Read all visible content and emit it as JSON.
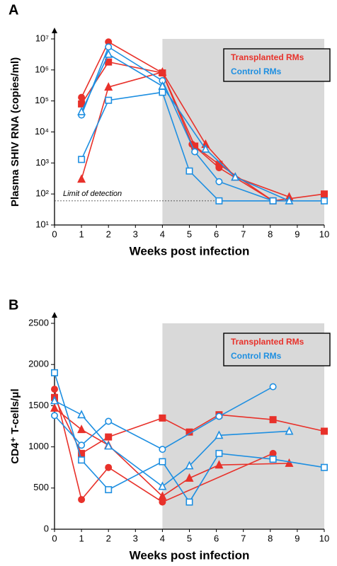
{
  "chart_data": [
    {
      "type": "line",
      "panel": "A",
      "xlabel": "Weeks post infection",
      "ylabel": "Plasma SHIV RNA (copies/ml)",
      "xlim": [
        0,
        10
      ],
      "xticks": [
        0,
        1,
        2,
        3,
        4,
        5,
        6,
        7,
        8,
        9,
        10
      ],
      "ylim": [
        10,
        10000000
      ],
      "log_y": true,
      "yticks": [
        {
          "value": 10,
          "label": "10¹"
        },
        {
          "value": 100,
          "label": "10²"
        },
        {
          "value": 1000,
          "label": "10³"
        },
        {
          "value": 10000,
          "label": "10⁴"
        },
        {
          "value": 100000,
          "label": "10⁵"
        },
        {
          "value": 1000000,
          "label": "10⁶"
        },
        {
          "value": 10000000,
          "label": "10⁷"
        }
      ],
      "shade_x": [
        4,
        10
      ],
      "legend": "top-right",
      "reference_line": {
        "value": 60,
        "label": "Limit of detection"
      },
      "groups": [
        {
          "name": "Transplanted RMs",
          "color": "#e8312a",
          "filled": true,
          "animals": [
            {
              "marker": "circle",
              "x": [
                1,
                2,
                4,
                5.1,
                6.1,
                8.1
              ],
              "values": [
                130000,
                8000000,
                800000,
                4000,
                700,
                60
              ]
            },
            {
              "marker": "square",
              "x": [
                1,
                2,
                4,
                5.2,
                6.1,
                8.1,
                10
              ],
              "values": [
                80000,
                1800000,
                800000,
                3500,
                900,
                60,
                100
              ]
            },
            {
              "marker": "triangle",
              "x": [
                1,
                2,
                4,
                5.6,
                6.7,
                8.7
              ],
              "values": [
                300,
                280000,
                850000,
                4000,
                350,
                80
              ]
            }
          ]
        },
        {
          "name": "Control RMs",
          "color": "#1e8fe1",
          "filled": false,
          "animals": [
            {
              "marker": "circle",
              "x": [
                1,
                2,
                4,
                5.2,
                6.1,
                8.1
              ],
              "values": [
                35000,
                5500000,
                450000,
                2300,
                250,
                60
              ]
            },
            {
              "marker": "square",
              "x": [
                1,
                2,
                4,
                5,
                6.1,
                8.1,
                10
              ],
              "values": [
                1300,
                105000,
                190000,
                550,
                60,
                60,
                60
              ]
            },
            {
              "marker": "triangle",
              "x": [
                1,
                2,
                4,
                5.6,
                6.7,
                8.7
              ],
              "values": [
                45000,
                3200000,
                300000,
                2800,
                350,
                60
              ]
            }
          ]
        }
      ]
    },
    {
      "type": "line",
      "panel": "B",
      "xlabel": "Weeks post infection",
      "ylabel": "CD4⁺ T-cells/μl",
      "xlim": [
        0,
        10
      ],
      "xticks": [
        0,
        1,
        2,
        3,
        4,
        5,
        6,
        7,
        8,
        9,
        10
      ],
      "ylim": [
        0,
        2500
      ],
      "log_y": false,
      "yticks": [
        0,
        500,
        1000,
        1500,
        2000,
        2500
      ],
      "shade_x": [
        4,
        10
      ],
      "legend": "top-right",
      "groups": [
        {
          "name": "Transplanted RMs",
          "color": "#e8312a",
          "filled": true,
          "animals": [
            {
              "marker": "circle",
              "x": [
                0,
                1,
                2,
                4,
                8.1
              ],
              "values": [
                1700,
                360,
                750,
                330,
                920
              ]
            },
            {
              "marker": "square",
              "x": [
                0,
                1,
                2,
                4,
                5,
                6.1,
                8.1,
                10
              ],
              "values": [
                1600,
                920,
                1120,
                1350,
                1180,
                1390,
                1330,
                1190
              ]
            },
            {
              "marker": "triangle",
              "x": [
                0,
                1,
                2,
                4,
                5,
                6.1,
                8.7
              ],
              "values": [
                1470,
                1210,
                1020,
                400,
                620,
                780,
                800
              ]
            }
          ]
        },
        {
          "name": "Control RMs",
          "color": "#1e8fe1",
          "filled": false,
          "animals": [
            {
              "marker": "circle",
              "x": [
                0,
                1,
                2,
                4,
                6.1,
                8.1
              ],
              "values": [
                1380,
                1020,
                1310,
                970,
                1370,
                1730
              ]
            },
            {
              "marker": "square",
              "x": [
                0,
                1,
                2,
                4,
                5,
                6.1,
                8.1,
                10
              ],
              "values": [
                1900,
                840,
                480,
                820,
                330,
                920,
                850,
                750
              ]
            },
            {
              "marker": "triangle",
              "x": [
                0,
                1,
                2,
                4,
                5,
                6.1,
                8.7
              ],
              "values": [
                1560,
                1390,
                1010,
                520,
                770,
                1140,
                1190
              ]
            }
          ]
        }
      ]
    }
  ]
}
